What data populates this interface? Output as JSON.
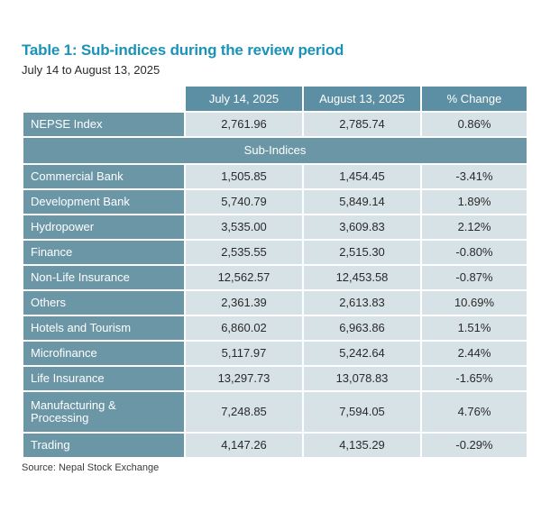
{
  "title": "Table 1: Sub-indices during the review period",
  "subtitle": "July 14 to August 13, 2025",
  "columns": [
    "",
    "July 14, 2025",
    "August 13, 2025",
    "% Change"
  ],
  "main_row": {
    "name": "NEPSE Index",
    "jul": "2,761.96",
    "aug": "2,785.74",
    "change": "0.86%"
  },
  "section_label": "Sub-Indices",
  "rows": [
    {
      "name": "Commercial Bank",
      "jul": "1,505.85",
      "aug": "1,454.45",
      "change": "-3.41%"
    },
    {
      "name": "Development Bank",
      "jul": "5,740.79",
      "aug": "5,849.14",
      "change": "1.89%"
    },
    {
      "name": "Hydropower",
      "jul": "3,535.00",
      "aug": "3,609.83",
      "change": "2.12%"
    },
    {
      "name": "Finance",
      "jul": "2,535.55",
      "aug": "2,515.30",
      "change": "-0.80%"
    },
    {
      "name": "Non-Life Insurance",
      "jul": "12,562.57",
      "aug": "12,453.58",
      "change": "-0.87%"
    },
    {
      "name": "Others",
      "jul": "2,361.39",
      "aug": "2,613.83",
      "change": "10.69%"
    },
    {
      "name": "Hotels and Tourism",
      "jul": "6,860.02",
      "aug": "6,963.86",
      "change": "1.51%"
    },
    {
      "name": "Microfinance",
      "jul": "5,117.97",
      "aug": "5,242.64",
      "change": "2.44%"
    },
    {
      "name": "Life Insurance",
      "jul": "13,297.73",
      "aug": "13,078.83",
      "change": "-1.65%"
    },
    {
      "name": "Manufacturing & Processing",
      "jul": "7,248.85",
      "aug": "7,594.05",
      "change": "4.76%"
    },
    {
      "name": "Trading",
      "jul": "4,147.26",
      "aug": "4,135.29",
      "change": "-0.29%"
    }
  ],
  "source": "Source: Nepal Stock Exchange",
  "colors": {
    "title": "#1a93b8",
    "header": "#5c8fa3",
    "label_cell": "#6b96a6",
    "value_cell": "#d7e2e7"
  }
}
